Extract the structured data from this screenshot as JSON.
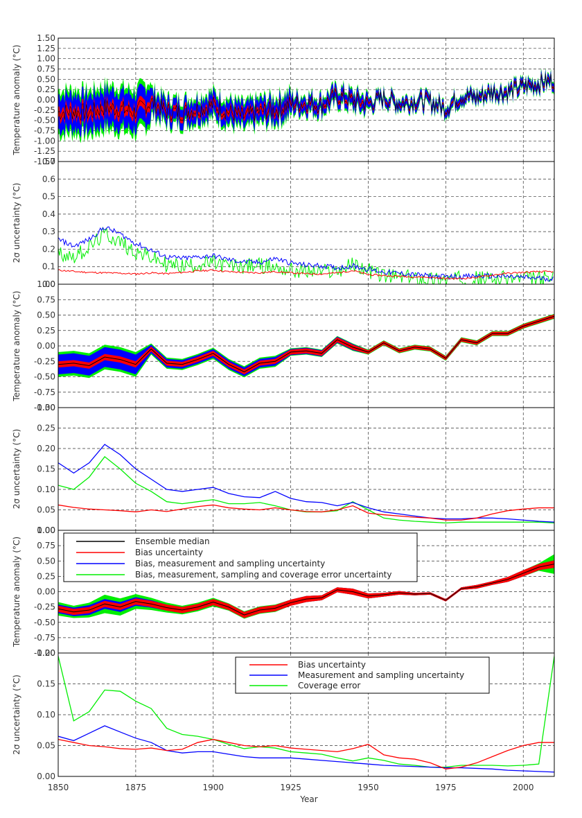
{
  "xaxis": {
    "label": "Year",
    "ticks": [
      "1850",
      "1875",
      "1900",
      "1925",
      "1950",
      "1975",
      "2000"
    ],
    "range": [
      1850,
      2010
    ]
  },
  "panels": [
    {
      "id": "monthly-anomaly",
      "ylabel": "Temperature anomaly (°C)",
      "ylim": [
        -1.5,
        1.5
      ],
      "yticks": [
        "1.50",
        "1.25",
        "1.00",
        "0.75",
        "0.50",
        "0.25",
        "0.00",
        "-0.25",
        "-0.50",
        "-0.75",
        "-1.00",
        "-1.25",
        "-1.50"
      ]
    },
    {
      "id": "monthly-uncertainty",
      "ylabel": "2σ uncertainty (°C)",
      "ylim": [
        0,
        0.7
      ],
      "yticks": [
        "0.7",
        "0.6",
        "0.5",
        "0.4",
        "0.3",
        "0.2",
        "0.1",
        "0.0"
      ]
    },
    {
      "id": "annual-anomaly",
      "ylabel": "Temperature anomaly (°C)",
      "ylim": [
        -1.0,
        1.0
      ],
      "yticks": [
        "1.00",
        "0.75",
        "0.50",
        "0.25",
        "0.00",
        "-0.25",
        "-0.50",
        "-0.75",
        "-1.00"
      ]
    },
    {
      "id": "annual-uncertainty",
      "ylabel": "2σ uncertainty (°C)",
      "ylim": [
        0,
        0.3
      ],
      "yticks": [
        "0.30",
        "0.25",
        "0.20",
        "0.15",
        "0.10",
        "0.05",
        "0.00"
      ]
    },
    {
      "id": "smoothed-anomaly",
      "ylabel": "Temperature anomaly (°C)",
      "ylim": [
        -1.0,
        1.0
      ],
      "yticks": [
        "1.00",
        "0.75",
        "0.50",
        "0.25",
        "0.00",
        "-0.25",
        "-0.50",
        "-0.75",
        "-1.00"
      ]
    },
    {
      "id": "smoothed-uncertainty",
      "ylabel": "2σ uncertainty (°C)",
      "ylim": [
        0,
        0.2
      ],
      "yticks": [
        "0.20",
        "0.15",
        "0.10",
        "0.05",
        "0.00"
      ]
    }
  ],
  "legend_anomaly": {
    "placement": "top-left",
    "entries": [
      {
        "label": "Ensemble median",
        "color": "#000000"
      },
      {
        "label": "Bias uncertainty",
        "color": "#ff0000"
      },
      {
        "label": "Bias, measurement and sampling uncertainty",
        "color": "#0000ff"
      },
      {
        "label": "Bias, measurement, sampling and coverage error uncertainty",
        "color": "#00ee00"
      }
    ]
  },
  "legend_uncertainty": {
    "placement": "top-right",
    "entries": [
      {
        "label": "Bias uncertainty",
        "color": "#ff0000"
      },
      {
        "label": "Measurement and sampling uncertainty",
        "color": "#0000ff"
      },
      {
        "label": "Coverage error",
        "color": "#00ee00"
      }
    ]
  },
  "colors": {
    "median": "#000000",
    "bias": "#ff0000",
    "measurement": "#0000ff",
    "coverage": "#00ee00"
  },
  "chart_data": [
    {
      "type": "area",
      "panel": "smoothed-anomaly",
      "x": [
        1850,
        1855,
        1860,
        1865,
        1870,
        1875,
        1880,
        1885,
        1890,
        1895,
        1900,
        1905,
        1910,
        1915,
        1920,
        1925,
        1930,
        1935,
        1940,
        1945,
        1950,
        1955,
        1960,
        1965,
        1970,
        1975,
        1980,
        1985,
        1990,
        1995,
        2000,
        2005,
        2010
      ],
      "median": [
        -0.28,
        -0.33,
        -0.3,
        -0.2,
        -0.25,
        -0.16,
        -0.2,
        -0.26,
        -0.3,
        -0.25,
        -0.17,
        -0.25,
        -0.38,
        -0.3,
        -0.27,
        -0.18,
        -0.12,
        -0.1,
        0.03,
        0.0,
        -0.07,
        -0.05,
        -0.02,
        -0.04,
        -0.03,
        -0.14,
        0.05,
        0.08,
        0.14,
        0.2,
        0.3,
        0.4,
        0.45
      ],
      "bias_halfwidth": [
        0.05,
        0.05,
        0.05,
        0.05,
        0.05,
        0.05,
        0.05,
        0.05,
        0.05,
        0.05,
        0.05,
        0.05,
        0.05,
        0.05,
        0.05,
        0.05,
        0.05,
        0.04,
        0.04,
        0.05,
        0.04,
        0.03,
        0.03,
        0.02,
        0.02,
        0.02,
        0.02,
        0.03,
        0.03,
        0.04,
        0.05,
        0.05,
        0.06
      ],
      "measurement_halfwidth": [
        0.07,
        0.07,
        0.08,
        0.08,
        0.08,
        0.07,
        0.06,
        0.05,
        0.05,
        0.05,
        0.05,
        0.05,
        0.05,
        0.05,
        0.05,
        0.05,
        0.05,
        0.04,
        0.04,
        0.05,
        0.04,
        0.03,
        0.03,
        0.02,
        0.02,
        0.02,
        0.02,
        0.03,
        0.03,
        0.04,
        0.05,
        0.05,
        0.06
      ],
      "coverage_halfwidth": [
        0.11,
        0.1,
        0.12,
        0.15,
        0.14,
        0.12,
        0.1,
        0.08,
        0.07,
        0.07,
        0.07,
        0.06,
        0.06,
        0.06,
        0.06,
        0.05,
        0.05,
        0.04,
        0.04,
        0.05,
        0.04,
        0.03,
        0.03,
        0.02,
        0.02,
        0.02,
        0.02,
        0.03,
        0.03,
        0.04,
        0.05,
        0.06,
        0.16
      ]
    },
    {
      "type": "line",
      "panel": "smoothed-uncertainty",
      "x": [
        1850,
        1855,
        1860,
        1865,
        1870,
        1875,
        1880,
        1885,
        1890,
        1895,
        1900,
        1905,
        1910,
        1915,
        1920,
        1925,
        1930,
        1935,
        1940,
        1945,
        1950,
        1955,
        1960,
        1965,
        1970,
        1975,
        1980,
        1985,
        1990,
        1995,
        2000,
        2005,
        2010
      ],
      "series": [
        {
          "name": "Bias uncertainty",
          "values": [
            0.06,
            0.055,
            0.05,
            0.048,
            0.045,
            0.044,
            0.046,
            0.042,
            0.044,
            0.055,
            0.06,
            0.055,
            0.05,
            0.048,
            0.05,
            0.046,
            0.044,
            0.042,
            0.04,
            0.045,
            0.052,
            0.035,
            0.03,
            0.028,
            0.022,
            0.012,
            0.015,
            0.022,
            0.032,
            0.042,
            0.05,
            0.055,
            0.055
          ]
        },
        {
          "name": "Measurement and sampling uncertainty",
          "values": [
            0.065,
            0.058,
            0.07,
            0.082,
            0.072,
            0.062,
            0.055,
            0.042,
            0.038,
            0.04,
            0.04,
            0.036,
            0.032,
            0.03,
            0.03,
            0.03,
            0.028,
            0.026,
            0.024,
            0.022,
            0.02,
            0.018,
            0.017,
            0.016,
            0.015,
            0.014,
            0.014,
            0.013,
            0.012,
            0.01,
            0.009,
            0.008,
            0.007
          ]
        },
        {
          "name": "Coverage error",
          "values": [
            0.195,
            0.09,
            0.105,
            0.14,
            0.138,
            0.122,
            0.11,
            0.078,
            0.068,
            0.065,
            0.06,
            0.052,
            0.045,
            0.048,
            0.046,
            0.04,
            0.038,
            0.036,
            0.03,
            0.025,
            0.03,
            0.026,
            0.02,
            0.018,
            0.015,
            0.015,
            0.018,
            0.018,
            0.018,
            0.017,
            0.018,
            0.02,
            0.195
          ]
        }
      ]
    },
    {
      "type": "area",
      "panel": "annual-anomaly",
      "x": [
        1850,
        1855,
        1860,
        1865,
        1870,
        1875,
        1880,
        1885,
        1890,
        1895,
        1900,
        1905,
        1910,
        1915,
        1920,
        1925,
        1930,
        1935,
        1940,
        1945,
        1950,
        1955,
        1960,
        1965,
        1970,
        1975,
        1980,
        1985,
        1990,
        1995,
        2000,
        2005,
        2010
      ],
      "median": [
        -0.3,
        -0.28,
        -0.32,
        -0.18,
        -0.22,
        -0.3,
        -0.05,
        -0.28,
        -0.3,
        -0.22,
        -0.12,
        -0.3,
        -0.42,
        -0.28,
        -0.25,
        -0.1,
        -0.08,
        -0.12,
        0.1,
        -0.02,
        -0.1,
        0.05,
        -0.08,
        -0.02,
        -0.05,
        -0.2,
        0.1,
        0.05,
        0.2,
        0.2,
        0.32,
        0.4,
        0.48
      ]
    },
    {
      "type": "line",
      "panel": "annual-uncertainty",
      "x": [
        1850,
        1855,
        1860,
        1865,
        1870,
        1875,
        1880,
        1885,
        1890,
        1895,
        1900,
        1905,
        1910,
        1915,
        1920,
        1925,
        1930,
        1935,
        1940,
        1945,
        1950,
        1955,
        1960,
        1965,
        1970,
        1975,
        1980,
        1985,
        1990,
        1995,
        2000,
        2005,
        2010
      ],
      "series": [
        {
          "name": "Bias uncertainty",
          "values": [
            0.062,
            0.056,
            0.052,
            0.05,
            0.048,
            0.045,
            0.05,
            0.046,
            0.052,
            0.058,
            0.062,
            0.055,
            0.052,
            0.05,
            0.055,
            0.05,
            0.046,
            0.045,
            0.05,
            0.06,
            0.042,
            0.038,
            0.035,
            0.032,
            0.03,
            0.025,
            0.025,
            0.03,
            0.04,
            0.048,
            0.052,
            0.055,
            0.055
          ]
        },
        {
          "name": "Bias, measurement and sampling uncertainty",
          "values": [
            0.165,
            0.14,
            0.165,
            0.21,
            0.185,
            0.15,
            0.125,
            0.1,
            0.095,
            0.1,
            0.105,
            0.09,
            0.082,
            0.08,
            0.095,
            0.078,
            0.07,
            0.068,
            0.06,
            0.068,
            0.055,
            0.045,
            0.04,
            0.035,
            0.03,
            0.028,
            0.028,
            0.03,
            0.03,
            0.028,
            0.025,
            0.022,
            0.02
          ]
        },
        {
          "name": "Bias, measurement, sampling and coverage error uncertainty",
          "values": [
            0.11,
            0.1,
            0.13,
            0.18,
            0.15,
            0.115,
            0.095,
            0.07,
            0.065,
            0.07,
            0.075,
            0.065,
            0.065,
            0.068,
            0.06,
            0.05,
            0.045,
            0.045,
            0.048,
            0.07,
            0.05,
            0.03,
            0.025,
            0.022,
            0.02,
            0.018,
            0.02,
            0.02,
            0.02,
            0.02,
            0.02,
            0.02,
            0.018
          ]
        }
      ]
    }
  ]
}
